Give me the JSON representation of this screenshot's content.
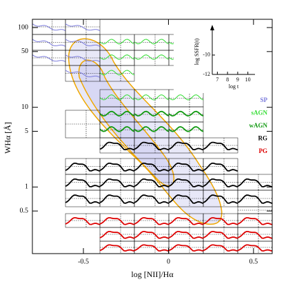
{
  "chart_data": [
    {
      "type": "line",
      "xlabel": "log [NII]/Hα",
      "ylabel": "WHα [Å]",
      "xlim": [
        -0.8,
        0.61
      ],
      "ylim": [
        0.146,
        127
      ],
      "log_y": true,
      "xticks": [
        -0.5,
        0,
        0.5
      ],
      "yticks": [
        0.5,
        1,
        5,
        10,
        50,
        100
      ],
      "series": [
        {
          "name": "SP",
          "color": "#7b7bdc"
        },
        {
          "name": "sAGN",
          "color": "#33dd33"
        },
        {
          "name": "wAGN",
          "color": "#119911"
        },
        {
          "name": "RG",
          "color": "#000000"
        },
        {
          "name": "PG",
          "color": "#dd0000"
        }
      ]
    },
    {
      "type": "inset",
      "xlabel": "log t",
      "ylabel": "log SSFR(t)",
      "xlim": [
        6.5,
        10.7
      ],
      "ylim": [
        -12,
        -7.3
      ],
      "xticks": [
        7,
        8,
        9,
        10
      ],
      "yticks": [
        -12,
        -10
      ]
    }
  ]
}
